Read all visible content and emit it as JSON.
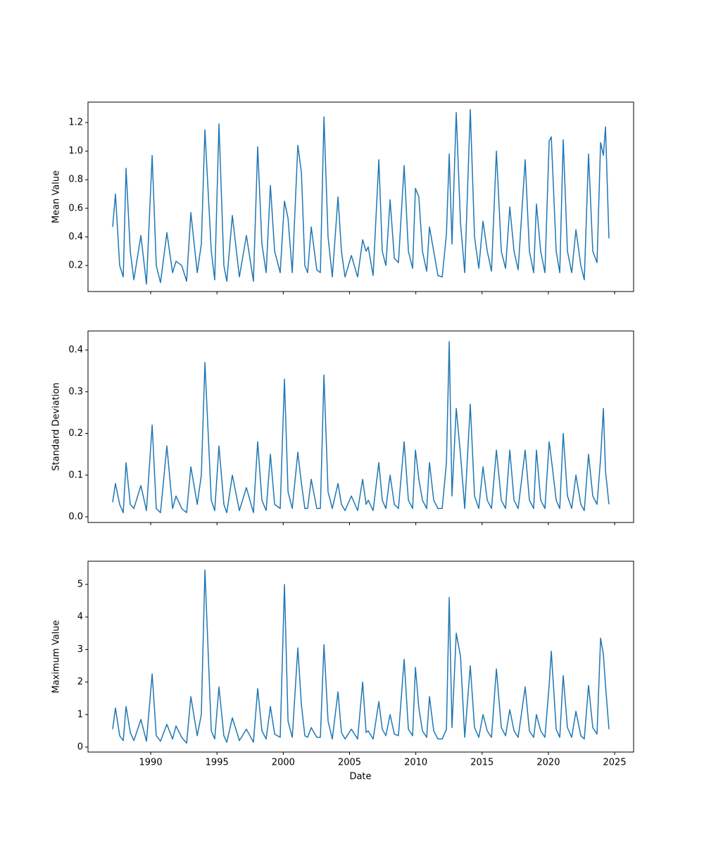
{
  "chart_data": {
    "type": "line",
    "xlabel": "Date",
    "x": [
      1987.13,
      1987.34,
      1987.66,
      1987.93,
      1988.14,
      1988.46,
      1988.73,
      1989.26,
      1989.68,
      1990.11,
      1990.42,
      1990.74,
      1991.22,
      1991.65,
      1991.91,
      1992.34,
      1992.71,
      1993.03,
      1993.51,
      1993.82,
      1994.09,
      1994.57,
      1994.83,
      1995.15,
      1995.52,
      1995.74,
      1996.16,
      1996.69,
      1997.22,
      1997.75,
      1998.07,
      1998.39,
      1998.71,
      1999.03,
      1999.35,
      1999.77,
      2000.09,
      2000.36,
      2000.68,
      2001.1,
      2001.37,
      2001.63,
      2001.84,
      2002.11,
      2002.53,
      2002.8,
      2003.07,
      2003.38,
      2003.7,
      2004.13,
      2004.39,
      2004.66,
      2005.14,
      2005.61,
      2005.99,
      2006.25,
      2006.41,
      2006.78,
      2007.21,
      2007.47,
      2007.74,
      2008.06,
      2008.38,
      2008.69,
      2009.12,
      2009.44,
      2009.76,
      2009.97,
      2010.23,
      2010.5,
      2010.82,
      2011.03,
      2011.35,
      2011.67,
      2011.99,
      2012.31,
      2012.52,
      2012.73,
      2013.05,
      2013.37,
      2013.69,
      2014.11,
      2014.43,
      2014.75,
      2015.07,
      2015.39,
      2015.71,
      2016.08,
      2016.45,
      2016.77,
      2017.09,
      2017.41,
      2017.72,
      2018.25,
      2018.57,
      2018.89,
      2019.1,
      2019.42,
      2019.74,
      2020.06,
      2020.22,
      2020.59,
      2020.86,
      2021.12,
      2021.44,
      2021.76,
      2022.08,
      2022.45,
      2022.71,
      2023.03,
      2023.35,
      2023.67,
      2023.94,
      2024.15,
      2024.31,
      2024.57
    ],
    "xlim": [
      1985.27,
      2026.43
    ],
    "xticks": [
      1990,
      1995,
      2000,
      2005,
      2010,
      2015,
      2020,
      2025
    ],
    "series": [
      {
        "name": "Mean Value",
        "color": "#1f77b4",
        "ylim": [
          0.018,
          1.343
        ],
        "yticks": [
          0.2,
          0.4,
          0.6,
          0.8,
          {
            "value": 1,
            "label": "1.0"
          },
          1.2
        ],
        "values": [
          0.47,
          0.7,
          0.2,
          0.12,
          0.88,
          0.3,
          0.1,
          0.41,
          0.07,
          0.97,
          0.2,
          0.08,
          0.43,
          0.15,
          0.23,
          0.2,
          0.09,
          0.57,
          0.15,
          0.35,
          1.15,
          0.3,
          0.1,
          1.19,
          0.2,
          0.09,
          0.55,
          0.12,
          0.41,
          0.09,
          1.03,
          0.35,
          0.15,
          0.76,
          0.3,
          0.15,
          0.65,
          0.53,
          0.15,
          1.04,
          0.85,
          0.2,
          0.15,
          0.47,
          0.17,
          0.15,
          1.24,
          0.4,
          0.12,
          0.68,
          0.3,
          0.12,
          0.27,
          0.12,
          0.38,
          0.3,
          0.33,
          0.13,
          0.94,
          0.3,
          0.2,
          0.66,
          0.25,
          0.22,
          0.9,
          0.3,
          0.18,
          0.74,
          0.68,
          0.3,
          0.16,
          0.47,
          0.3,
          0.13,
          0.12,
          0.42,
          0.98,
          0.35,
          1.27,
          0.5,
          0.15,
          1.29,
          0.4,
          0.18,
          0.51,
          0.3,
          0.16,
          1.0,
          0.3,
          0.18,
          0.61,
          0.3,
          0.17,
          0.94,
          0.3,
          0.15,
          0.63,
          0.3,
          0.15,
          1.07,
          1.1,
          0.3,
          0.15,
          1.08,
          0.3,
          0.15,
          0.45,
          0.2,
          0.1,
          0.98,
          0.3,
          0.22,
          1.06,
          0.97,
          1.17,
          0.39
        ]
      },
      {
        "name": "Standard Deviation",
        "color": "#1f77b4",
        "ylim": [
          -0.0135,
          0.4456
        ],
        "yticks": [
          {
            "value": 0,
            "label": "0.0"
          },
          0.1,
          0.2,
          0.3,
          0.4
        ],
        "values": [
          0.035,
          0.08,
          0.03,
          0.01,
          0.13,
          0.03,
          0.02,
          0.075,
          0.015,
          0.22,
          0.02,
          0.01,
          0.17,
          0.02,
          0.05,
          0.02,
          0.01,
          0.12,
          0.03,
          0.1,
          0.37,
          0.04,
          0.015,
          0.17,
          0.03,
          0.01,
          0.1,
          0.015,
          0.07,
          0.01,
          0.18,
          0.04,
          0.015,
          0.15,
          0.03,
          0.02,
          0.33,
          0.06,
          0.02,
          0.155,
          0.08,
          0.02,
          0.02,
          0.09,
          0.02,
          0.02,
          0.34,
          0.06,
          0.02,
          0.08,
          0.03,
          0.015,
          0.05,
          0.015,
          0.09,
          0.03,
          0.04,
          0.015,
          0.13,
          0.04,
          0.02,
          0.1,
          0.03,
          0.02,
          0.18,
          0.04,
          0.02,
          0.16,
          0.09,
          0.04,
          0.02,
          0.13,
          0.04,
          0.02,
          0.02,
          0.13,
          0.42,
          0.05,
          0.26,
          0.15,
          0.02,
          0.27,
          0.05,
          0.02,
          0.12,
          0.04,
          0.02,
          0.16,
          0.04,
          0.02,
          0.16,
          0.04,
          0.02,
          0.16,
          0.04,
          0.02,
          0.16,
          0.04,
          0.02,
          0.18,
          0.14,
          0.04,
          0.02,
          0.2,
          0.05,
          0.02,
          0.1,
          0.03,
          0.015,
          0.15,
          0.05,
          0.03,
          0.14,
          0.26,
          0.11,
          0.03
        ]
      },
      {
        "name": "Maximum Value",
        "color": "#1f77b4",
        "ylim": [
          -0.152,
          5.714
        ],
        "yticks": [
          0,
          1,
          2,
          3,
          4,
          5
        ],
        "values": [
          0.55,
          1.2,
          0.35,
          0.2,
          1.25,
          0.45,
          0.2,
          0.85,
          0.18,
          2.25,
          0.35,
          0.18,
          0.7,
          0.25,
          0.65,
          0.3,
          0.12,
          1.55,
          0.35,
          1.0,
          5.45,
          0.5,
          0.25,
          1.85,
          0.35,
          0.15,
          0.9,
          0.2,
          0.55,
          0.15,
          1.8,
          0.5,
          0.25,
          1.25,
          0.4,
          0.3,
          5.0,
          0.8,
          0.3,
          3.05,
          1.3,
          0.35,
          0.3,
          0.6,
          0.3,
          0.3,
          3.15,
          0.8,
          0.25,
          1.7,
          0.45,
          0.25,
          0.55,
          0.25,
          2.0,
          0.45,
          0.5,
          0.25,
          1.4,
          0.55,
          0.35,
          1.0,
          0.4,
          0.35,
          2.7,
          0.55,
          0.35,
          2.45,
          1.2,
          0.5,
          0.3,
          1.55,
          0.5,
          0.25,
          0.25,
          0.55,
          4.6,
          0.6,
          3.5,
          2.8,
          0.3,
          2.5,
          0.6,
          0.3,
          1.0,
          0.5,
          0.3,
          2.4,
          0.6,
          0.35,
          1.15,
          0.5,
          0.3,
          1.85,
          0.5,
          0.3,
          1.0,
          0.5,
          0.3,
          1.9,
          2.95,
          0.55,
          0.3,
          2.2,
          0.6,
          0.3,
          1.1,
          0.35,
          0.25,
          1.9,
          0.6,
          0.4,
          3.35,
          2.85,
          1.9,
          0.55
        ]
      }
    ]
  }
}
